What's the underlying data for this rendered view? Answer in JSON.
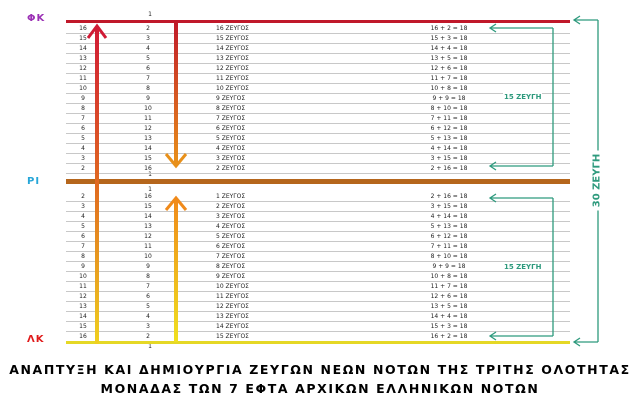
{
  "labels": {
    "top": "ΦΚ",
    "middle": "ΡΙ",
    "bottom": "ΛΚ",
    "top_marker": "1",
    "mid_marker_upper": "1",
    "mid_marker_lower": "1",
    "bottom_marker": "1"
  },
  "colors": {
    "top_line": "#c0182a",
    "middle_line": "#b5661c",
    "bottom_line": "#e5d826",
    "arrows": "#2e9a7d",
    "top_label": "#9b30b5",
    "middle_label": "#27a6d8",
    "bottom_label": "#e01b1b",
    "down_arrow_gradient": [
      "#c01a2a",
      "#e8901a"
    ],
    "up_arrow_gradient": [
      "#f08a1a",
      "#f0e020"
    ],
    "left_bar_gradient": [
      "#d01a35",
      "#e06a20",
      "#f0d020"
    ]
  },
  "brackets": {
    "upper": "15 ΖΕΥΓΗ",
    "lower": "15 ΖΕΥΓΗ",
    "total": "30 ΖΕΥΓΗ"
  },
  "upper_rows": [
    [
      "16",
      "2",
      "16 ΖΕΥΓΟΣ",
      "16 + 2 = 18"
    ],
    [
      "15",
      "3",
      "15 ΖΕΥΓΟΣ",
      "15 + 3 = 18"
    ],
    [
      "14",
      "4",
      "14 ΖΕΥΓΟΣ",
      "14 + 4 = 18"
    ],
    [
      "13",
      "5",
      "13 ΖΕΥΓΟΣ",
      "13 + 5 = 18"
    ],
    [
      "12",
      "6",
      "12 ΖΕΥΓΟΣ",
      "12 + 6 = 18"
    ],
    [
      "11",
      "7",
      "11 ΖΕΥΓΟΣ",
      "11 + 7 = 18"
    ],
    [
      "10",
      "8",
      "10 ΖΕΥΓΟΣ",
      "10 + 8 = 18"
    ],
    [
      "9",
      "9",
      "9 ΖΕΥΓΟΣ",
      "9 + 9 = 18"
    ],
    [
      "8",
      "10",
      "8 ΖΕΥΓΟΣ",
      "8 + 10 = 18"
    ],
    [
      "7",
      "11",
      "7 ΖΕΥΓΟΣ",
      "7 + 11 = 18"
    ],
    [
      "6",
      "12",
      "6 ΖΕΥΓΟΣ",
      "6 + 12 = 18"
    ],
    [
      "5",
      "13",
      "5 ΖΕΥΓΟΣ",
      "5 + 13 = 18"
    ],
    [
      "4",
      "14",
      "4 ΖΕΥΓΟΣ",
      "4 + 14 = 18"
    ],
    [
      "3",
      "15",
      "3 ΖΕΥΓΟΣ",
      "3 + 15 = 18"
    ],
    [
      "2",
      "16",
      "2 ΖΕΥΓΟΣ",
      "2 + 16 = 18"
    ]
  ],
  "lower_rows": [
    [
      "2",
      "16",
      "1 ΖΕΥΓΟΣ",
      "2 + 16 = 18"
    ],
    [
      "3",
      "15",
      "2 ΖΕΥΓΟΣ",
      "3 + 15 = 18"
    ],
    [
      "4",
      "14",
      "3 ΖΕΥΓΟΣ",
      "4 + 14 = 18"
    ],
    [
      "5",
      "13",
      "4 ΖΕΥΓΟΣ",
      "5 + 13 = 18"
    ],
    [
      "6",
      "12",
      "5 ΖΕΥΓΟΣ",
      "6 + 12 = 18"
    ],
    [
      "7",
      "11",
      "6 ΖΕΥΓΟΣ",
      "7 + 11 = 18"
    ],
    [
      "8",
      "10",
      "7 ΖΕΥΓΟΣ",
      "8 + 10 = 18"
    ],
    [
      "9",
      "9",
      "8 ΖΕΥΓΟΣ",
      "9 + 9 = 18"
    ],
    [
      "10",
      "8",
      "9 ΖΕΥΓΟΣ",
      "10 + 8 = 18"
    ],
    [
      "11",
      "7",
      "10 ΖΕΥΓΟΣ",
      "11 + 7 = 18"
    ],
    [
      "12",
      "6",
      "11 ΖΕΥΓΟΣ",
      "12 + 6 = 18"
    ],
    [
      "13",
      "5",
      "12 ΖΕΥΓΟΣ",
      "13 + 5 = 18"
    ],
    [
      "14",
      "4",
      "13 ΖΕΥΓΟΣ",
      "14 + 4 = 18"
    ],
    [
      "15",
      "3",
      "14 ΖΕΥΓΟΣ",
      "15 + 3 = 18"
    ],
    [
      "16",
      "2",
      "15 ΖΕΥΓΟΣ",
      "16 + 2 = 18"
    ]
  ],
  "caption": {
    "line1": "ΑΝΑΠΤΥΞΗ ΚΑΙ ΔΗΜΙΟΥΡΓΙΑ ΖΕΥΓΩΝ ΝΕΩΝ ΝΟΤΩΝ ΤΗΣ ΤΡΙΤΗΣ ΟΛΟΤΗΤΑΣ",
    "line2": "ΜΟΝΑΔΑΣ ΤΩΝ 7 ΕΦΤΑ ΑΡΧΙΚΩΝ ΕΛΛΗΝΙΚΩΝ ΝΟΤΩΝ"
  }
}
